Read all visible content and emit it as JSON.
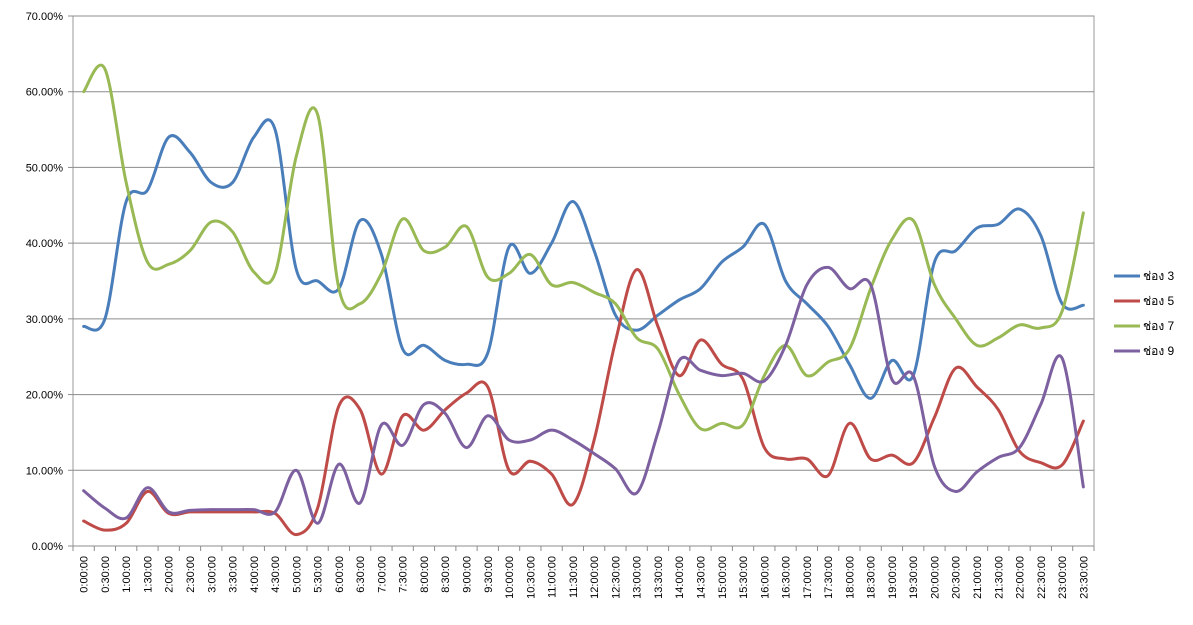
{
  "chart_data": {
    "type": "line",
    "title": "",
    "xlabel": "",
    "ylabel": "",
    "ylim": [
      0,
      0.7
    ],
    "y_ticks": [
      "0.00%",
      "10.00%",
      "20.00%",
      "30.00%",
      "40.00%",
      "50.00%",
      "60.00%",
      "70.00%"
    ],
    "grid": true,
    "smooth": true,
    "legend_position": "right",
    "categories": [
      "0:00:00",
      "0:30:00",
      "1:00:00",
      "1:30:00",
      "2:00:00",
      "2:30:00",
      "3:00:00",
      "3:30:00",
      "4:00:00",
      "4:30:00",
      "5:00:00",
      "5:30:00",
      "6:00:00",
      "6:30:00",
      "7:00:00",
      "7:30:00",
      "8:00:00",
      "8:30:00",
      "9:00:00",
      "9:30:00",
      "10:00:00",
      "10:30:00",
      "11:00:00",
      "11:30:00",
      "12:00:00",
      "12:30:00",
      "13:00:00",
      "13:30:00",
      "14:00:00",
      "14:30:00",
      "15:00:00",
      "15:30:00",
      "16:00:00",
      "16:30:00",
      "17:00:00",
      "17:30:00",
      "18:00:00",
      "18:30:00",
      "19:00:00",
      "19:30:00",
      "20:00:00",
      "20:30:00",
      "21:00:00",
      "21:30:00",
      "22:00:00",
      "22:30:00",
      "23:00:00",
      "23:30:00"
    ],
    "series": [
      {
        "name": "ช่อง 3",
        "color": "#4a7ebb",
        "values": [
          0.29,
          0.3,
          0.455,
          0.47,
          0.54,
          0.52,
          0.48,
          0.48,
          0.54,
          0.55,
          0.365,
          0.35,
          0.34,
          0.43,
          0.385,
          0.26,
          0.265,
          0.245,
          0.24,
          0.255,
          0.395,
          0.36,
          0.4,
          0.455,
          0.39,
          0.305,
          0.285,
          0.305,
          0.325,
          0.34,
          0.375,
          0.395,
          0.425,
          0.35,
          0.32,
          0.29,
          0.24,
          0.195,
          0.245,
          0.225,
          0.375,
          0.39,
          0.42,
          0.425,
          0.445,
          0.41,
          0.32,
          0.318
        ]
      },
      {
        "name": "ช่อง 5",
        "color": "#be4b48",
        "values": [
          0.033,
          0.021,
          0.03,
          0.072,
          0.043,
          0.045,
          0.045,
          0.045,
          0.045,
          0.043,
          0.015,
          0.05,
          0.185,
          0.18,
          0.095,
          0.172,
          0.153,
          0.18,
          0.202,
          0.21,
          0.1,
          0.112,
          0.095,
          0.055,
          0.14,
          0.27,
          0.365,
          0.29,
          0.225,
          0.272,
          0.24,
          0.22,
          0.13,
          0.115,
          0.115,
          0.093,
          0.162,
          0.115,
          0.12,
          0.11,
          0.17,
          0.235,
          0.21,
          0.18,
          0.125,
          0.11,
          0.107,
          0.165
        ]
      },
      {
        "name": "ช่อง 7",
        "color": "#98b954",
        "values": [
          0.6,
          0.63,
          0.48,
          0.375,
          0.372,
          0.39,
          0.428,
          0.415,
          0.362,
          0.36,
          0.515,
          0.57,
          0.34,
          0.32,
          0.36,
          0.432,
          0.39,
          0.395,
          0.422,
          0.355,
          0.36,
          0.385,
          0.345,
          0.348,
          0.335,
          0.32,
          0.275,
          0.26,
          0.2,
          0.155,
          0.162,
          0.16,
          0.225,
          0.265,
          0.225,
          0.243,
          0.26,
          0.34,
          0.405,
          0.43,
          0.345,
          0.3,
          0.265,
          0.275,
          0.292,
          0.288,
          0.31,
          0.44
        ]
      },
      {
        "name": "ช่อง 9",
        "color": "#7d60a0",
        "values": [
          0.073,
          0.05,
          0.037,
          0.077,
          0.045,
          0.047,
          0.048,
          0.048,
          0.048,
          0.045,
          0.1,
          0.03,
          0.108,
          0.057,
          0.16,
          0.133,
          0.187,
          0.175,
          0.13,
          0.172,
          0.14,
          0.14,
          0.153,
          0.14,
          0.122,
          0.102,
          0.07,
          0.15,
          0.245,
          0.232,
          0.225,
          0.228,
          0.218,
          0.265,
          0.345,
          0.368,
          0.34,
          0.345,
          0.22,
          0.225,
          0.105,
          0.072,
          0.098,
          0.117,
          0.13,
          0.187,
          0.248,
          0.078
        ]
      }
    ]
  }
}
